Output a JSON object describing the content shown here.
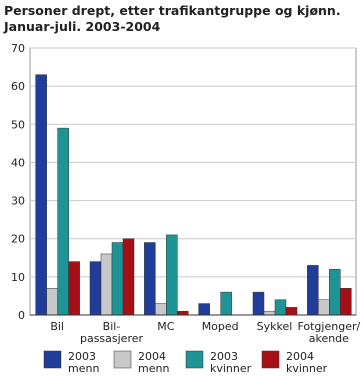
{
  "chart_data": {
    "type": "bar",
    "title": [
      "Personer drept, etter trafikantgruppe og  kjønn.",
      "Januar-juli. 2003-2004"
    ],
    "categories": [
      "Bil",
      "Bil-\npassasjerer",
      "MC",
      "Moped",
      "Sykkel",
      "Fotgjenger/\nakende"
    ],
    "series": [
      {
        "name": "2003\nmenn",
        "color": "#1f3d99",
        "values": [
          63,
          14,
          19,
          3,
          6,
          13
        ]
      },
      {
        "name": "2004\nmenn",
        "color": "#c8c8c8",
        "values": [
          7,
          16,
          3,
          0,
          1,
          4
        ]
      },
      {
        "name": "2003\nkvinner",
        "color": "#1e9494",
        "values": [
          49,
          19,
          21,
          6,
          4,
          12
        ]
      },
      {
        "name": "2004\nkvinner",
        "color": "#a50f15",
        "values": [
          14,
          20,
          1,
          0,
          2,
          7
        ]
      }
    ],
    "ylim": [
      0,
      70
    ],
    "yticks": [
      0,
      10,
      20,
      30,
      40,
      50,
      60,
      70
    ],
    "grid": true
  }
}
